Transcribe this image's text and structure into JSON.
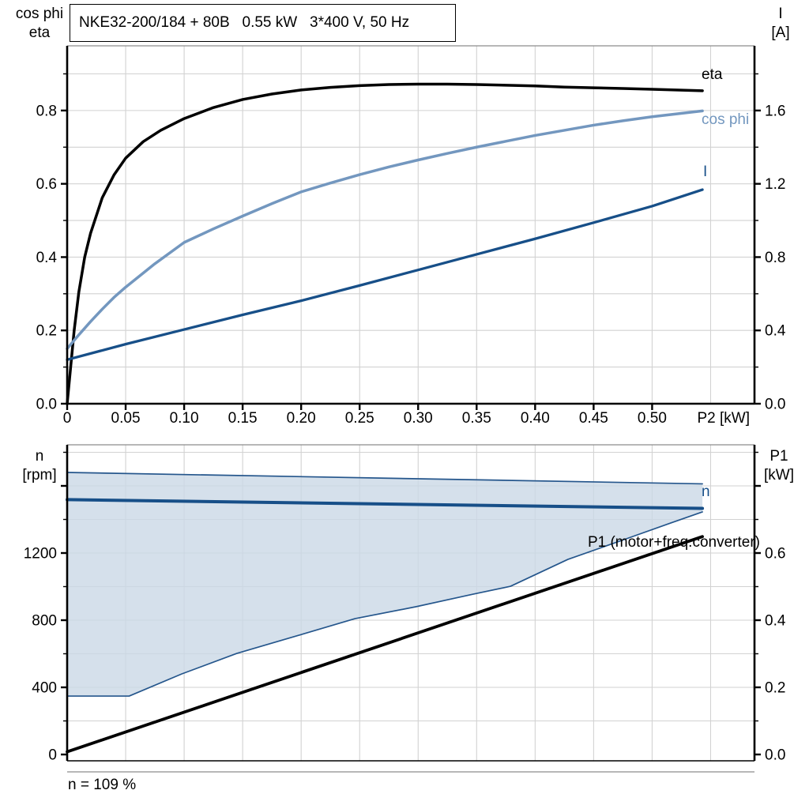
{
  "header": {
    "title": "NKE32-200/184 + 80B   0.55 kW   3*400 V, 50 Hz"
  },
  "axis_titles": {
    "top_left_1": "cos phi",
    "top_left_2": "eta",
    "top_right_1": "I",
    "top_right_2": "[A]",
    "bottom_left_1": "n",
    "bottom_left_2": "[rpm]",
    "bottom_right_1": "P1",
    "bottom_right_2": "[kW]"
  },
  "curve_labels": {
    "eta": "eta",
    "cos_phi": "cos phi",
    "current": "I",
    "speed": "n",
    "p1": "P1 (motor+freq.converter)"
  },
  "footer": {
    "note": "n = 109 %"
  },
  "colors": {
    "black": "#000000",
    "dark_blue": "#174f88",
    "steel_blue": "#7397bf",
    "thin_blue": "#25568c",
    "fill_blue": "rgba(203,216,230,0.8)",
    "grid": "#d2d2d2",
    "frame": "#8c8c8c",
    "axis": "#000000"
  },
  "chart_data": [
    {
      "id": "top-chart-eta-cosphi-current",
      "type": "line",
      "title": "NKE32-200/184 + 80B   0.55 kW   3*400 V, 50 Hz",
      "xlabel": "P2 [kW]",
      "xlabel_v": 0.561,
      "ylabel_left": "cos phi / eta",
      "ylabel_right": "I [A]",
      "xlim": [
        0,
        0.5875
      ],
      "ylim_left": [
        0,
        0.9765
      ],
      "ylim_right": [
        0,
        1.953
      ],
      "grid_x": [
        0.05,
        0.1,
        0.15,
        0.2,
        0.25,
        0.3,
        0.35,
        0.4,
        0.45,
        0.5,
        0.55
      ],
      "grid_y": [
        0.1,
        0.2,
        0.3,
        0.4,
        0.5,
        0.6,
        0.7,
        0.8,
        0.9
      ],
      "x_ticks": [
        {
          "v": 0,
          "label": "0"
        },
        {
          "v": 0.05,
          "label": "0.05"
        },
        {
          "v": 0.1,
          "label": "0.10"
        },
        {
          "v": 0.15,
          "label": "0.15"
        },
        {
          "v": 0.2,
          "label": "0.20"
        },
        {
          "v": 0.25,
          "label": "0.25"
        },
        {
          "v": 0.3,
          "label": "0.30"
        },
        {
          "v": 0.35,
          "label": "0.35"
        },
        {
          "v": 0.4,
          "label": "0.40"
        },
        {
          "v": 0.45,
          "label": "0.45"
        },
        {
          "v": 0.5,
          "label": "0.50"
        }
      ],
      "y_ticks_left": [
        {
          "v": 0.0,
          "label": "0.0"
        },
        {
          "v": 0.2,
          "label": "0.2"
        },
        {
          "v": 0.4,
          "label": "0.4"
        },
        {
          "v": 0.6,
          "label": "0.6"
        },
        {
          "v": 0.8,
          "label": "0.8"
        }
      ],
      "y_minor_left": [
        0.1,
        0.3,
        0.5,
        0.7,
        0.9
      ],
      "y_ticks_right": [
        {
          "v": 0.0,
          "label": "0.0"
        },
        {
          "v": 0.4,
          "label": "0.4"
        },
        {
          "v": 0.8,
          "label": "0.8"
        },
        {
          "v": 1.2,
          "label": "1.2"
        },
        {
          "v": 1.6,
          "label": "1.6"
        }
      ],
      "y_minor_right": [
        0.2,
        0.6,
        1.0,
        1.4,
        1.8
      ],
      "series": [
        {
          "key": "eta",
          "name": "eta",
          "axis": "left",
          "color_key": "black",
          "width": 3.5,
          "points": [
            [
              0,
              0
            ],
            [
              0.003,
              0.1
            ],
            [
              0.006,
              0.2
            ],
            [
              0.01,
              0.305
            ],
            [
              0.015,
              0.4
            ],
            [
              0.02,
              0.465
            ],
            [
              0.03,
              0.562
            ],
            [
              0.04,
              0.624
            ],
            [
              0.05,
              0.67
            ],
            [
              0.065,
              0.715
            ],
            [
              0.08,
              0.746
            ],
            [
              0.1,
              0.778
            ],
            [
              0.125,
              0.808
            ],
            [
              0.15,
              0.83
            ],
            [
              0.175,
              0.845
            ],
            [
              0.2,
              0.856
            ],
            [
              0.225,
              0.863
            ],
            [
              0.25,
              0.868
            ],
            [
              0.275,
              0.871
            ],
            [
              0.3,
              0.872
            ],
            [
              0.325,
              0.872
            ],
            [
              0.35,
              0.871
            ],
            [
              0.375,
              0.869
            ],
            [
              0.4,
              0.867
            ],
            [
              0.425,
              0.864
            ],
            [
              0.45,
              0.862
            ],
            [
              0.475,
              0.86
            ],
            [
              0.5,
              0.858
            ],
            [
              0.543,
              0.854
            ]
          ]
        },
        {
          "key": "cos-phi",
          "name": "cos phi",
          "axis": "left",
          "color_key": "steel_blue",
          "width": 3.5,
          "points": [
            [
              0,
              0.15
            ],
            [
              0.01,
              0.188
            ],
            [
              0.02,
              0.224
            ],
            [
              0.03,
              0.258
            ],
            [
              0.04,
              0.29
            ],
            [
              0.05,
              0.318
            ],
            [
              0.075,
              0.382
            ],
            [
              0.1,
              0.44
            ],
            [
              0.125,
              0.477
            ],
            [
              0.15,
              0.512
            ],
            [
              0.175,
              0.546
            ],
            [
              0.2,
              0.578
            ],
            [
              0.225,
              0.602
            ],
            [
              0.25,
              0.625
            ],
            [
              0.275,
              0.646
            ],
            [
              0.3,
              0.665
            ],
            [
              0.325,
              0.683
            ],
            [
              0.35,
              0.7
            ],
            [
              0.375,
              0.716
            ],
            [
              0.4,
              0.732
            ],
            [
              0.425,
              0.746
            ],
            [
              0.45,
              0.76
            ],
            [
              0.475,
              0.772
            ],
            [
              0.5,
              0.783
            ],
            [
              0.543,
              0.799
            ]
          ]
        },
        {
          "key": "current",
          "name": "I",
          "axis": "right",
          "color_key": "dark_blue",
          "width": 3.3,
          "points": [
            [
              0,
              0.24
            ],
            [
              0.05,
              0.325
            ],
            [
              0.1,
              0.405
            ],
            [
              0.15,
              0.485
            ],
            [
              0.2,
              0.562
            ],
            [
              0.25,
              0.645
            ],
            [
              0.3,
              0.73
            ],
            [
              0.35,
              0.815
            ],
            [
              0.4,
              0.9
            ],
            [
              0.45,
              0.988
            ],
            [
              0.5,
              1.078
            ],
            [
              0.543,
              1.168
            ]
          ]
        }
      ]
    },
    {
      "id": "bottom-chart-speed-power",
      "type": "line",
      "xlabel": "",
      "ylabel_left": "n [rpm]",
      "ylabel_right": "P1 [kW]",
      "xlim": [
        0,
        0.5875
      ],
      "ylim_left": [
        -103.5,
        1844.7
      ],
      "ylim_right": [
        -0.0518,
        0.9224
      ],
      "grid_x": [
        0.05,
        0.1,
        0.15,
        0.2,
        0.25,
        0.3,
        0.35,
        0.4,
        0.45,
        0.5,
        0.55
      ],
      "grid_y": [
        200,
        400,
        600,
        800,
        1000,
        1200,
        1400,
        1600,
        1800
      ],
      "x_ticks": [],
      "y_ticks_left": [
        {
          "v": 0,
          "label": "0"
        },
        {
          "v": 400,
          "label": "400"
        },
        {
          "v": 800,
          "label": "800"
        },
        {
          "v": 1200,
          "label": "1200"
        },
        {
          "v": 1600,
          "label": ""
        }
      ],
      "y_minor_left": [
        200,
        600,
        1000,
        1400,
        1800
      ],
      "y_ticks_right": [
        {
          "v": 0.0,
          "label": "0.0"
        },
        {
          "v": 0.2,
          "label": "0.2"
        },
        {
          "v": 0.4,
          "label": "0.4"
        },
        {
          "v": 0.6,
          "label": "0.6"
        },
        {
          "v": 0.8,
          "label": ""
        }
      ],
      "y_minor_right": [
        0.1,
        0.3,
        0.5,
        0.7,
        0.9
      ],
      "region": {
        "name": "speed-control-range",
        "upper": "n_max",
        "lower": "n_min",
        "fill_key": "fill_blue"
      },
      "series": [
        {
          "key": "n-max",
          "name": "n_max",
          "axis": "left",
          "color_key": "thin_blue",
          "width": 1.7,
          "points": [
            [
              0,
              1680
            ],
            [
              0.543,
              1612
            ]
          ]
        },
        {
          "key": "n-min",
          "name": "n_min",
          "axis": "left",
          "color_key": "thin_blue",
          "width": 1.7,
          "points": [
            [
              0,
              348
            ],
            [
              0.053,
              348
            ],
            [
              0.098,
              480
            ],
            [
              0.145,
              602
            ],
            [
              0.196,
              706
            ],
            [
              0.246,
              809
            ],
            [
              0.298,
              880
            ],
            [
              0.347,
              955
            ],
            [
              0.379,
              1002
            ],
            [
              0.428,
              1162
            ],
            [
              0.476,
              1280
            ],
            [
              0.516,
              1379
            ],
            [
              0.543,
              1445
            ]
          ]
        },
        {
          "key": "n",
          "name": "n",
          "axis": "left",
          "color_key": "dark_blue",
          "width": 4,
          "points": [
            [
              0,
              1518
            ],
            [
              0.543,
              1466
            ]
          ]
        },
        {
          "key": "p1",
          "name": "P1 (motor+freq.converter)",
          "axis": "right",
          "color_key": "black",
          "width": 3.8,
          "points": [
            [
              0,
              0.008
            ],
            [
              0.543,
              0.649
            ]
          ]
        }
      ]
    }
  ]
}
